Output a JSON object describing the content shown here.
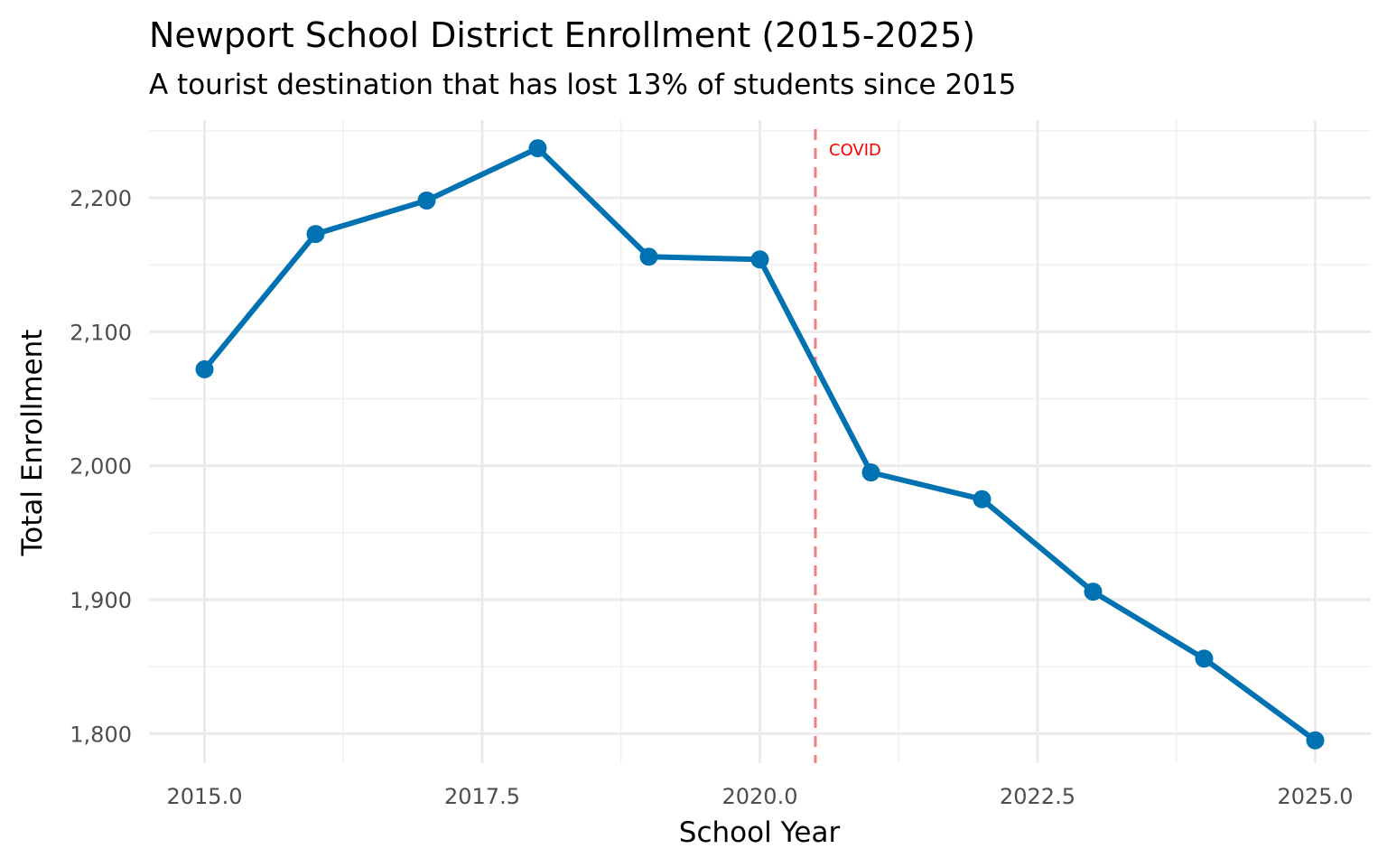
{
  "chart_data": {
    "type": "line",
    "title": "Newport School District Enrollment (2015-2025)",
    "subtitle": "A tourist destination that has lost 13% of students since 2015",
    "xlabel": "School Year",
    "ylabel": "Total Enrollment",
    "x": [
      2015,
      2016,
      2017,
      2018,
      2019,
      2020,
      2021,
      2022,
      2023,
      2024,
      2025
    ],
    "series": [
      {
        "values": [
          2072,
          2173,
          2198,
          2237,
          2156,
          2154,
          1995,
          1975,
          1906,
          1856,
          1795
        ]
      }
    ],
    "xlim": [
      2014.5,
      2025.5
    ],
    "ylim": [
      1778,
      2258
    ],
    "x_ticks": [
      2015,
      2017.5,
      2020,
      2022.5,
      2025
    ],
    "x_tick_labels": [
      "2015.0",
      "2017.5",
      "2020.0",
      "2022.5",
      "2025.0"
    ],
    "y_ticks": [
      1800,
      1900,
      2000,
      2100,
      2200
    ],
    "y_tick_labels": [
      "1,800",
      "1,900",
      "2,000",
      "2,100",
      "2,200"
    ],
    "grid": true,
    "line_color": "#0072B2",
    "annotation": {
      "x": 2020.5,
      "label": "COVID",
      "color": "#FF0000",
      "line_color": "#F08080",
      "line_style": "dashed"
    }
  }
}
